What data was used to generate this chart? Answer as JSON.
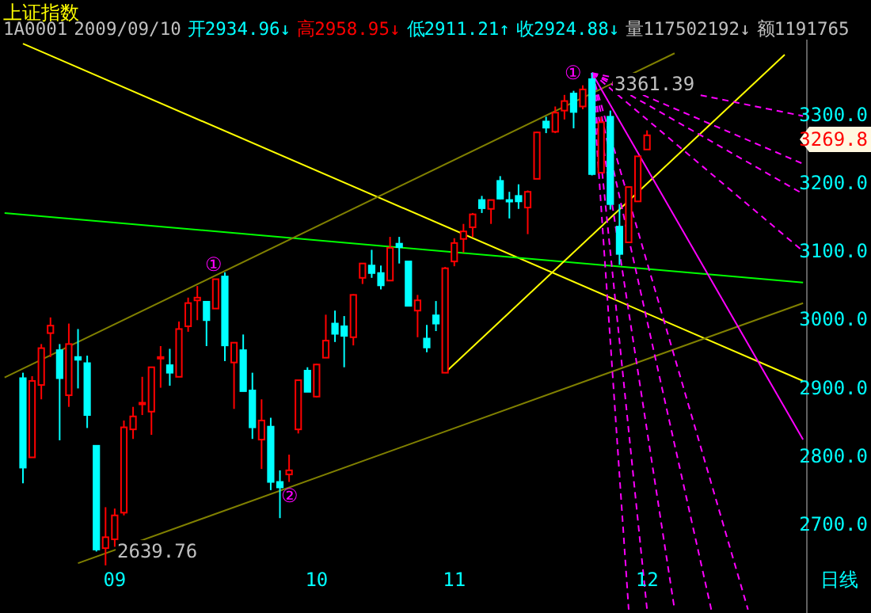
{
  "chart_data": {
    "type": "candlestick",
    "title": "上证指数",
    "annotations": [
      "1A0001",
      "2009/09/10",
      "开2934.96↓",
      "高2958.95↓",
      "低2911.21↑",
      "收2924.88↓",
      "量117502192↓",
      "额1191765",
      "日线",
      "①",
      "②",
      "①",
      "3361.39",
      "2639.76",
      "3269.8"
    ],
    "categories": [
      null,
      null,
      null,
      null,
      null,
      null,
      null,
      null,
      null,
      null,
      null,
      null,
      "09",
      null,
      null,
      null,
      null,
      null,
      null,
      null,
      null,
      null,
      null,
      null,
      null,
      null,
      null,
      null,
      null,
      null,
      null,
      null,
      null,
      null,
      "10",
      null,
      null,
      null,
      null,
      null,
      null,
      null,
      null,
      null,
      null,
      null,
      null,
      null,
      null,
      "11",
      null,
      null,
      null,
      null,
      null,
      null,
      null,
      null,
      null,
      null,
      null,
      null,
      null,
      null,
      null,
      null,
      null,
      null,
      null,
      null,
      "12",
      null,
      null,
      null,
      null,
      null,
      null,
      null,
      null,
      null,
      null,
      null,
      null,
      null,
      null,
      null,
      null,
      null
    ],
    "ohlc": [
      null,
      null,
      [
        2914,
        2922,
        2760,
        2783
      ],
      [
        2798,
        2917,
        2798,
        2910
      ],
      [
        2904,
        2964,
        2883,
        2958
      ],
      [
        2980,
        3003,
        2945,
        2991
      ],
      [
        2955,
        2964,
        2823,
        2914
      ],
      [
        2889,
        2994,
        2872,
        2964
      ],
      [
        2945,
        2986,
        2899,
        2941
      ],
      [
        2936,
        2947,
        2841,
        2860
      ],
      [
        2815,
        2815,
        2660,
        2663
      ],
      [
        2665,
        2725,
        2639.76,
        2681
      ],
      [
        2678,
        2723,
        2667,
        2713
      ],
      [
        2717,
        2852,
        2713,
        2842
      ],
      [
        2839,
        2872,
        2825,
        2858
      ],
      [
        2877,
        2916,
        2860,
        2878
      ],
      [
        2865,
        2930,
        2831,
        2930
      ],
      [
        2943,
        2961,
        2900,
        2945
      ],
      [
        2933,
        2957,
        2903,
        2922
      ],
      [
        2916,
        2997,
        2916,
        2986
      ],
      [
        2990,
        3032,
        2982,
        3024
      ],
      [
        3028,
        3049,
        2999,
        3032
      ],
      [
        3026,
        3026,
        2961,
        2999
      ],
      [
        3016,
        3059,
        3016,
        3059
      ],
      [
        3063,
        3069,
        2939,
        2962
      ],
      [
        2937,
        2966,
        2869,
        2966
      ],
      [
        2955,
        2978,
        2895,
        2895
      ],
      [
        2896,
        2922,
        2825,
        2842
      ],
      [
        2824,
        2883,
        2781,
        2852
      ],
      [
        2843,
        2856,
        2750,
        2762
      ],
      [
        2762,
        2779,
        2709,
        2754
      ],
      [
        2773,
        2802,
        2762,
        2779
      ],
      [
        2839,
        2911,
        2833,
        2911
      ],
      [
        2925,
        2930,
        2894,
        2894
      ],
      [
        2887,
        2935,
        2886,
        2934
      ],
      [
        2944,
        3007,
        2944,
        2969
      ],
      [
        2994,
        3013,
        2967,
        2979
      ],
      [
        2990,
        3005,
        2930,
        2976
      ],
      [
        2974,
        3037,
        2962,
        3036
      ],
      [
        3061,
        3082,
        3052,
        3082
      ],
      [
        3079,
        3102,
        3061,
        3068
      ],
      [
        3068,
        3079,
        3044,
        3050
      ],
      [
        3057,
        3121,
        3057,
        3105
      ],
      [
        3111,
        3121,
        3082,
        3106
      ],
      [
        3085,
        3085,
        3020,
        3020
      ],
      [
        3013,
        3036,
        2974,
        3028
      ],
      [
        2972,
        2992,
        2952,
        2959
      ],
      [
        3006,
        3027,
        2983,
        2994
      ],
      [
        2922,
        3077,
        2922,
        3075
      ],
      [
        3085,
        3119,
        3078,
        3112
      ],
      [
        3118,
        3140,
        3098,
        3129
      ],
      [
        3135,
        3156,
        3121,
        3154
      ],
      [
        3175,
        3181,
        3156,
        3163
      ],
      [
        3162,
        3175,
        3140,
        3175
      ],
      [
        3203,
        3210,
        3176,
        3177
      ],
      [
        3175,
        3187,
        3148,
        3173
      ],
      [
        3181,
        3198,
        3162,
        3173
      ],
      [
        3164,
        3189,
        3125,
        3187
      ],
      [
        3206,
        3275,
        3206,
        3274
      ],
      [
        3290,
        3297,
        3273,
        3281
      ],
      [
        3275,
        3312,
        3273,
        3303
      ],
      [
        3306,
        3329,
        3293,
        3320
      ],
      [
        3331,
        3335,
        3280,
        3304
      ],
      [
        3312,
        3343,
        3308,
        3337
      ],
      [
        3352,
        3361.39,
        3211,
        3213
      ],
      [
        3215,
        3297,
        3215,
        3289
      ],
      [
        3297,
        3306,
        3161,
        3169
      ],
      [
        3136,
        3169,
        3080,
        3096
      ],
      [
        3113,
        3194,
        3113,
        3194
      ],
      [
        3173,
        3239,
        3173,
        3239
      ],
      [
        3249,
        3277,
        3249,
        3269.8
      ],
      null,
      null,
      null,
      null,
      null,
      null,
      null,
      null,
      null,
      null,
      null,
      null,
      null,
      null,
      null,
      null,
      null
    ],
    "colors": [
      null,
      null,
      "#00ffff",
      "#ff0000",
      "#ff0000",
      "#ff0000",
      "#00ffff",
      "#ff0000",
      "#00ffff",
      "#00ffff",
      "#00ffff",
      "#ff0000",
      "#ff0000",
      "#ff0000",
      "#ff0000",
      "#ff0000",
      "#ff0000",
      "#ff0000",
      "#00ffff",
      "#ff0000",
      "#ff0000",
      "#ff0000",
      "#00ffff",
      "#ff0000",
      "#00ffff",
      "#ff0000",
      "#00ffff",
      "#00ffff",
      "#ff0000",
      "#00ffff",
      "#00ffff",
      "#ff0000",
      "#ff0000",
      "#00ffff",
      "#ff0000",
      "#ff0000",
      "#00ffff",
      "#00ffff",
      "#ff0000",
      "#ff0000",
      "#00ffff",
      "#00ffff",
      "#ff0000",
      "#00ffff",
      "#00ffff",
      "#ff0000",
      "#00ffff",
      "#00ffff",
      "#ff0000",
      "#ff0000",
      "#ff0000",
      "#ff0000",
      "#00ffff",
      "#ff0000",
      "#00ffff",
      "#00ffff",
      "#00ffff",
      "#ff0000",
      "#ff0000",
      "#00ffff",
      "#ff0000",
      "#ff0000",
      "#00ffff",
      "#ff0000",
      "#00ffff",
      "#ff0000",
      "#00ffff",
      "#00ffff",
      "#ff0000",
      "#ff0000",
      "#ff0000",
      null,
      null,
      null,
      null,
      null,
      null,
      null,
      null,
      null,
      null,
      null,
      null,
      null,
      null,
      null,
      null,
      null
    ],
    "series": [
      {
        "type": "line",
        "color": "#ffff00",
        "values": [
          null,
          null,
          3404,
          null,
          null,
          null,
          null,
          null,
          null,
          null,
          null,
          null,
          null,
          null,
          null,
          null,
          null,
          null,
          null,
          null,
          null,
          null,
          null,
          null,
          null,
          null,
          null,
          null,
          null,
          null,
          null,
          null,
          null,
          null,
          null,
          null,
          null,
          null,
          null,
          null,
          null,
          null,
          null,
          null,
          null,
          null,
          null,
          null,
          null,
          null,
          null,
          null,
          null,
          null,
          null,
          null,
          null,
          null,
          null,
          null,
          null,
          null,
          null,
          null,
          null,
          null,
          null,
          null,
          null,
          null,
          null,
          null,
          null,
          null,
          null,
          null,
          null,
          null,
          null,
          null,
          null,
          null,
          null,
          null,
          null,
          null,
          null,
          2910
        ]
      },
      {
        "type": "line",
        "color": "#00ff00",
        "values": [
          3156,
          null,
          null,
          null,
          null,
          null,
          null,
          null,
          null,
          null,
          null,
          null,
          null,
          null,
          null,
          null,
          null,
          null,
          null,
          null,
          null,
          null,
          null,
          null,
          null,
          null,
          null,
          null,
          null,
          null,
          null,
          null,
          null,
          null,
          null,
          null,
          null,
          null,
          null,
          null,
          null,
          null,
          null,
          null,
          null,
          null,
          null,
          null,
          null,
          null,
          null,
          null,
          null,
          null,
          null,
          null,
          null,
          null,
          null,
          null,
          null,
          null,
          null,
          null,
          null,
          null,
          null,
          null,
          null,
          null,
          null,
          null,
          null,
          null,
          null,
          null,
          null,
          null,
          null,
          null,
          null,
          null,
          null,
          null,
          null,
          null,
          null,
          3054
        ]
      },
      {
        "type": "line",
        "color": "#808000",
        "values": [
          2915,
          null,
          null,
          null,
          null,
          null,
          null,
          null,
          null,
          null,
          null,
          null,
          null,
          null,
          null,
          null,
          null,
          null,
          null,
          null,
          null,
          null,
          null,
          null,
          null,
          null,
          null,
          null,
          null,
          null,
          null,
          null,
          null,
          null,
          null,
          null,
          null,
          null,
          null,
          null,
          null,
          null,
          null,
          null,
          null,
          null,
          null,
          null,
          null,
          null,
          null,
          null,
          null,
          null,
          null,
          null,
          null,
          null,
          null,
          null,
          null,
          null,
          null,
          null,
          null,
          null,
          null,
          null,
          null,
          null,
          null,
          null,
          null,
          3390,
          null,
          null,
          null,
          null,
          null,
          null,
          null,
          null,
          null,
          null,
          null,
          null,
          null,
          null
        ]
      },
      {
        "type": "line",
        "color": "#808000",
        "values": [
          null,
          null,
          null,
          null,
          null,
          null,
          null,
          null,
          2643,
          null,
          null,
          null,
          null,
          null,
          null,
          null,
          null,
          null,
          null,
          null,
          null,
          null,
          null,
          null,
          null,
          null,
          null,
          null,
          null,
          null,
          null,
          null,
          null,
          null,
          null,
          null,
          null,
          null,
          null,
          null,
          null,
          null,
          null,
          null,
          null,
          null,
          null,
          null,
          null,
          null,
          null,
          null,
          null,
          null,
          null,
          null,
          null,
          null,
          null,
          null,
          null,
          null,
          null,
          null,
          null,
          null,
          null,
          null,
          null,
          null,
          null,
          null,
          null,
          null,
          null,
          null,
          null,
          null,
          null,
          null,
          null,
          null,
          null,
          null,
          null,
          null,
          null,
          3024
        ]
      },
      {
        "type": "line",
        "color": "#ffff00",
        "values": [
          null,
          null,
          null,
          null,
          null,
          null,
          null,
          null,
          null,
          null,
          null,
          null,
          null,
          null,
          null,
          null,
          null,
          null,
          null,
          null,
          null,
          null,
          null,
          null,
          null,
          null,
          null,
          null,
          null,
          null,
          null,
          null,
          null,
          null,
          null,
          null,
          null,
          null,
          null,
          null,
          null,
          null,
          null,
          null,
          null,
          null,
          null,
          null,
          2922,
          null,
          null,
          null,
          null,
          null,
          null,
          null,
          null,
          null,
          null,
          null,
          null,
          null,
          null,
          null,
          null,
          null,
          null,
          null,
          null,
          null,
          null,
          null,
          null,
          null,
          null,
          null,
          null,
          null,
          null,
          null,
          null,
          null,
          null,
          null,
          null,
          3388,
          null,
          null
        ]
      },
      {
        "type": "line",
        "color": "#ff00ff",
        "values": [
          null,
          null,
          null,
          null,
          null,
          null,
          null,
          null,
          null,
          null,
          null,
          null,
          null,
          null,
          null,
          null,
          null,
          null,
          null,
          null,
          null,
          null,
          null,
          null,
          null,
          null,
          null,
          null,
          null,
          null,
          null,
          null,
          null,
          null,
          null,
          null,
          null,
          null,
          null,
          null,
          null,
          null,
          null,
          null,
          null,
          null,
          null,
          null,
          null,
          null,
          null,
          null,
          null,
          null,
          null,
          null,
          null,
          null,
          null,
          null,
          null,
          null,
          null,
          null,
          3361,
          null,
          null,
          null,
          null,
          null,
          null,
          null,
          null,
          null,
          null,
          null,
          null,
          null,
          null,
          null,
          null,
          null,
          null,
          null,
          null,
          null,
          null,
          2824
        ]
      },
      {
        "type": "line",
        "color": "#ff00ff",
        "line_style": "dashed",
        "values": [
          null,
          null,
          null,
          null,
          null,
          null,
          null,
          null,
          null,
          null,
          null,
          null,
          null,
          null,
          null,
          null,
          null,
          null,
          null,
          null,
          null,
          null,
          null,
          null,
          null,
          null,
          null,
          null,
          null,
          null,
          null,
          null,
          null,
          null,
          null,
          null,
          null,
          null,
          null,
          null,
          null,
          null,
          null,
          null,
          null,
          null,
          null,
          null,
          null,
          null,
          null,
          null,
          null,
          null,
          null,
          null,
          null,
          null,
          null,
          null,
          null,
          null,
          null,
          null,
          3361,
          null,
          null,
          null,
          null,
          null,
          null,
          null,
          null,
          null,
          null,
          null,
          null,
          null,
          null,
          null,
          null,
          null,
          null,
          null,
          null,
          null,
          null,
          3298
        ]
      },
      {
        "type": "line",
        "color": "#ff00ff",
        "line_style": "dashed",
        "values": [
          null,
          null,
          null,
          null,
          null,
          null,
          null,
          null,
          null,
          null,
          null,
          null,
          null,
          null,
          null,
          null,
          null,
          null,
          null,
          null,
          null,
          null,
          null,
          null,
          null,
          null,
          null,
          null,
          null,
          null,
          null,
          null,
          null,
          null,
          null,
          null,
          null,
          null,
          null,
          null,
          null,
          null,
          null,
          null,
          null,
          null,
          null,
          null,
          null,
          null,
          null,
          null,
          null,
          null,
          null,
          null,
          null,
          null,
          null,
          null,
          null,
          null,
          null,
          null,
          3361,
          null,
          null,
          null,
          null,
          null,
          null,
          null,
          null,
          null,
          null,
          null,
          null,
          null,
          null,
          null,
          null,
          null,
          null,
          null,
          null,
          null,
          null,
          3228
        ]
      },
      {
        "type": "line",
        "color": "#ff00ff",
        "line_style": "dashed",
        "values": [
          null,
          null,
          null,
          null,
          null,
          null,
          null,
          null,
          null,
          null,
          null,
          null,
          null,
          null,
          null,
          null,
          null,
          null,
          null,
          null,
          null,
          null,
          null,
          null,
          null,
          null,
          null,
          null,
          null,
          null,
          null,
          null,
          null,
          null,
          null,
          null,
          null,
          null,
          null,
          null,
          null,
          null,
          null,
          null,
          null,
          null,
          null,
          null,
          null,
          null,
          null,
          null,
          null,
          null,
          null,
          null,
          null,
          null,
          null,
          null,
          null,
          null,
          null,
          null,
          3361,
          null,
          null,
          null,
          null,
          null,
          null,
          null,
          null,
          null,
          null,
          null,
          null,
          null,
          null,
          null,
          null,
          null,
          null,
          null,
          null,
          null,
          null,
          3184
        ]
      },
      {
        "type": "line",
        "color": "#ff00ff",
        "line_style": "dashed",
        "values": [
          null,
          null,
          null,
          null,
          null,
          null,
          null,
          null,
          null,
          null,
          null,
          null,
          null,
          null,
          null,
          null,
          null,
          null,
          null,
          null,
          null,
          null,
          null,
          null,
          null,
          null,
          null,
          null,
          null,
          null,
          null,
          null,
          null,
          null,
          null,
          null,
          null,
          null,
          null,
          null,
          null,
          null,
          null,
          null,
          null,
          null,
          null,
          null,
          null,
          null,
          null,
          null,
          null,
          null,
          null,
          null,
          null,
          null,
          null,
          null,
          null,
          null,
          null,
          null,
          3361,
          null,
          null,
          null,
          null,
          null,
          null,
          null,
          null,
          null,
          null,
          null,
          null,
          null,
          null,
          null,
          null,
          null,
          null,
          null,
          null,
          null,
          null,
          3100
        ]
      },
      {
        "type": "line",
        "color": "#ff00ff",
        "line_style": "dashed",
        "values": [
          null,
          null,
          null,
          null,
          null,
          null,
          null,
          null,
          null,
          null,
          null,
          null,
          null,
          null,
          null,
          null,
          null,
          null,
          null,
          null,
          null,
          null,
          null,
          null,
          null,
          null,
          null,
          null,
          null,
          null,
          null,
          null,
          null,
          null,
          null,
          null,
          null,
          null,
          null,
          null,
          null,
          null,
          null,
          null,
          null,
          null,
          null,
          null,
          null,
          null,
          null,
          null,
          null,
          null,
          null,
          null,
          null,
          null,
          null,
          null,
          null,
          null,
          null,
          null,
          3361,
          null,
          null,
          null,
          2575,
          null,
          null,
          null,
          null,
          null,
          null,
          null,
          null,
          null,
          null,
          null,
          null,
          null,
          null,
          null,
          null,
          null,
          null,
          null
        ]
      },
      {
        "type": "line",
        "color": "#ff00ff",
        "line_style": "dashed",
        "values": [
          null,
          null,
          null,
          null,
          null,
          null,
          null,
          null,
          null,
          null,
          null,
          null,
          null,
          null,
          null,
          null,
          null,
          null,
          null,
          null,
          null,
          null,
          null,
          null,
          null,
          null,
          null,
          null,
          null,
          null,
          null,
          null,
          null,
          null,
          null,
          null,
          null,
          null,
          null,
          null,
          null,
          null,
          null,
          null,
          null,
          null,
          null,
          null,
          null,
          null,
          null,
          null,
          null,
          null,
          null,
          null,
          null,
          null,
          null,
          null,
          null,
          null,
          null,
          null,
          3361,
          null,
          null,
          null,
          null,
          null,
          2575,
          null,
          null,
          null,
          null,
          null,
          null,
          null,
          null,
          null,
          null,
          null,
          null,
          null,
          null,
          null,
          null,
          null
        ]
      },
      {
        "type": "line",
        "color": "#ff00ff",
        "line_style": "dashed",
        "values": [
          null,
          null,
          null,
          null,
          null,
          null,
          null,
          null,
          null,
          null,
          null,
          null,
          null,
          null,
          null,
          null,
          null,
          null,
          null,
          null,
          null,
          null,
          null,
          null,
          null,
          null,
          null,
          null,
          null,
          null,
          null,
          null,
          null,
          null,
          null,
          null,
          null,
          null,
          null,
          null,
          null,
          null,
          null,
          null,
          null,
          null,
          null,
          null,
          null,
          null,
          null,
          null,
          null,
          null,
          null,
          null,
          null,
          null,
          null,
          null,
          null,
          null,
          null,
          null,
          3361,
          null,
          null,
          null,
          null,
          null,
          null,
          null,
          null,
          2575,
          null,
          null,
          null,
          null,
          null,
          null,
          null,
          null,
          null,
          null,
          null,
          null,
          null,
          null
        ]
      },
      {
        "type": "line",
        "color": "#ff00ff",
        "line_style": "dashed",
        "values": [
          null,
          null,
          null,
          null,
          null,
          null,
          null,
          null,
          null,
          null,
          null,
          null,
          null,
          null,
          null,
          null,
          null,
          null,
          null,
          null,
          null,
          null,
          null,
          null,
          null,
          null,
          null,
          null,
          null,
          null,
          null,
          null,
          null,
          null,
          null,
          null,
          null,
          null,
          null,
          null,
          null,
          null,
          null,
          null,
          null,
          null,
          null,
          null,
          null,
          null,
          null,
          null,
          null,
          null,
          null,
          null,
          null,
          null,
          null,
          null,
          null,
          null,
          null,
          null,
          3361,
          null,
          null,
          null,
          null,
          null,
          null,
          null,
          null,
          null,
          null,
          null,
          null,
          2575,
          null,
          null,
          null,
          null,
          null,
          null,
          null,
          null,
          null,
          null
        ]
      },
      {
        "type": "line",
        "color": "#ff00ff",
        "line_style": "dashed",
        "values": [
          null,
          null,
          null,
          null,
          null,
          null,
          null,
          null,
          null,
          null,
          null,
          null,
          null,
          null,
          null,
          null,
          null,
          null,
          null,
          null,
          null,
          null,
          null,
          null,
          null,
          null,
          null,
          null,
          null,
          null,
          null,
          null,
          null,
          null,
          null,
          null,
          null,
          null,
          null,
          null,
          null,
          null,
          null,
          null,
          null,
          null,
          null,
          null,
          null,
          null,
          null,
          null,
          null,
          null,
          null,
          null,
          null,
          null,
          null,
          null,
          null,
          null,
          null,
          null,
          3361,
          null,
          null,
          null,
          null,
          null,
          null,
          null,
          null,
          null,
          null,
          null,
          null,
          null,
          null,
          null,
          null,
          2575,
          null,
          null,
          null,
          null,
          null,
          null
        ]
      }
    ],
    "ylim": [
      2570,
      3410
    ],
    "yticks": [
      {
        "value": 2700,
        "label": "2700.0"
      },
      {
        "value": 2800,
        "label": "2800.0"
      },
      {
        "value": 2900,
        "label": "2900.0"
      },
      {
        "value": 3000,
        "label": "3000.0"
      },
      {
        "value": 3100,
        "label": "3100.0"
      },
      {
        "value": 3200,
        "label": "3200.0"
      },
      {
        "value": 3300,
        "label": "3300.0"
      }
    ],
    "grid": false
  }
}
